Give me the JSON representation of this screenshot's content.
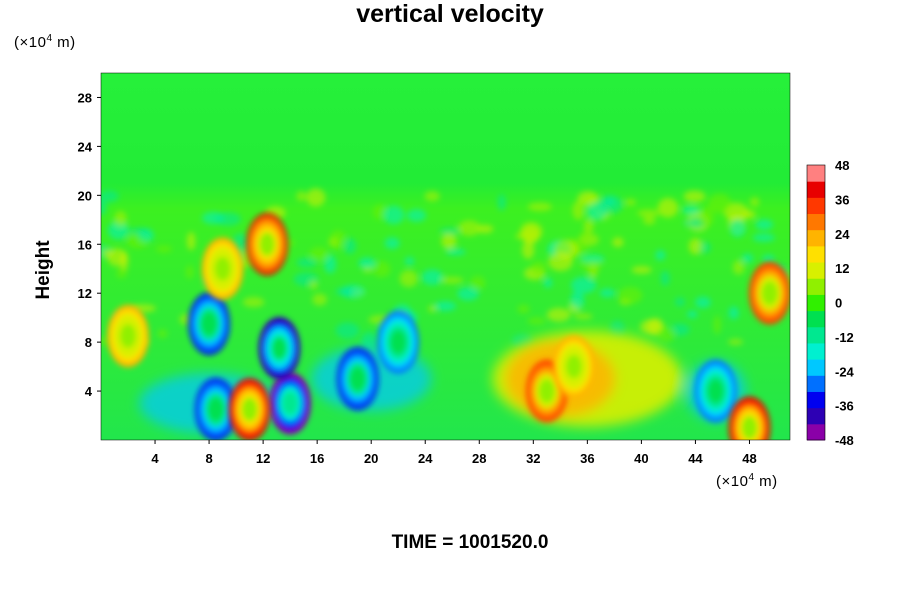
{
  "chart_data": {
    "type": "heatmap",
    "title": "vertical velocity",
    "ylabel": "Height",
    "xlabel": "",
    "y_unit": "(×10⁴ m)",
    "x_unit": "(×10⁴ m)",
    "xlim": [
      0,
      51
    ],
    "ylim": [
      0,
      30
    ],
    "x_ticks": [
      4,
      8,
      12,
      16,
      20,
      24,
      28,
      32,
      36,
      40,
      44,
      48
    ],
    "y_ticks": [
      4,
      8,
      12,
      16,
      20,
      24,
      28
    ],
    "colorbar": {
      "min": -48,
      "max": 48,
      "ticks": [
        48,
        36,
        24,
        12,
        0,
        -12,
        -24,
        -36,
        -48
      ],
      "colors": [
        "#8a00a8",
        "#2d00b4",
        "#0000f0",
        "#0070ff",
        "#00c8ff",
        "#00f0d0",
        "#00e890",
        "#00e050",
        "#30f000",
        "#90f000",
        "#d8f000",
        "#ffe000",
        "#ffb400",
        "#ff7800",
        "#ff3800",
        "#e80000",
        "#ff8080"
      ]
    },
    "features": [
      {
        "x": 14,
        "y": 3,
        "value": -48
      },
      {
        "x": 13.2,
        "y": 7.5,
        "value": -42
      },
      {
        "x": 8.5,
        "y": 2.5,
        "value": -36
      },
      {
        "x": 8,
        "y": 9.5,
        "value": -36
      },
      {
        "x": 19,
        "y": 5,
        "value": -36
      },
      {
        "x": 22,
        "y": 8,
        "value": -30
      },
      {
        "x": 45.5,
        "y": 4,
        "value": -30
      },
      {
        "x": 11,
        "y": 2.5,
        "value": 42
      },
      {
        "x": 12.3,
        "y": 16,
        "value": 40
      },
      {
        "x": 33,
        "y": 4,
        "value": 36
      },
      {
        "x": 35,
        "y": 6,
        "value": 24
      },
      {
        "x": 48,
        "y": 1,
        "value": 42
      },
      {
        "x": 49.5,
        "y": 12,
        "value": 36
      },
      {
        "x": 2,
        "y": 8.5,
        "value": 24
      },
      {
        "x": 9,
        "y": 14,
        "value": 24
      }
    ]
  },
  "footer": {
    "time": "TIME = 1001520.0"
  },
  "colors": {
    "background_field": "#20e640",
    "upper_field": "#22ee33"
  }
}
